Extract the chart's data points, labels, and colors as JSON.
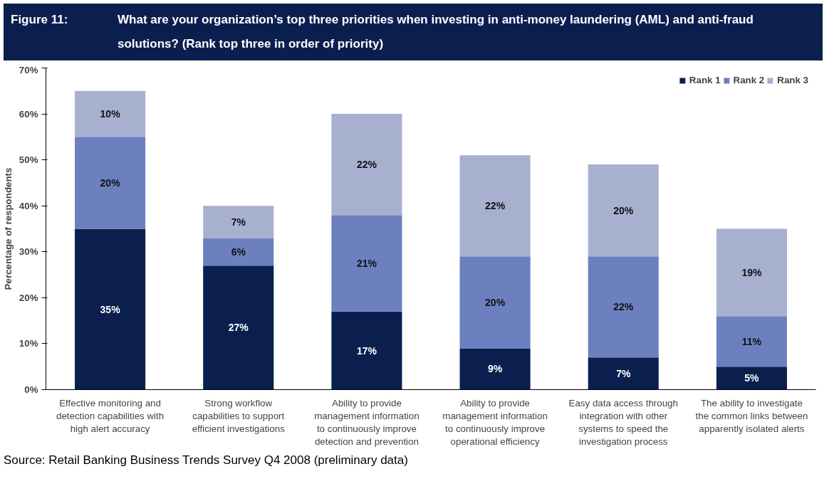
{
  "chart_data": {
    "type": "bar",
    "stacked": true,
    "title": "Figure 11:",
    "subtitle": "What are your organization’s top three priorities when investing in anti-money laundering (AML) and anti-fraud solutions? (Rank top three in order of priority)",
    "ylabel": "Percentage of respondents",
    "categories": [
      "Effective monitoring and\ndetection capabilities with\nhigh alert accuracy",
      "Strong workflow\ncapabilities to support\nefficient investigations",
      "Ability to provide\nmanagement information\nto continuously improve\ndetection and prevention",
      "Ability to provide\nmanagement information\nto continuously improve\noperational efficiency",
      "Easy data access through\nintegration with other\nsystems to speed the\ninvestigation process",
      "The ability to investigate\nthe common links between\napparently isolated alerts"
    ],
    "series": [
      {
        "name": "Rank 1",
        "color": "#0b1f4f",
        "values": [
          35,
          27,
          17,
          9,
          7,
          5
        ],
        "value_labels": [
          "35%",
          "27%",
          "17%",
          "9%",
          "7%",
          "5%"
        ]
      },
      {
        "name": "Rank 2",
        "color": "#6c80c0",
        "values": [
          20,
          6,
          21,
          20,
          22,
          11
        ],
        "value_labels": [
          "20%",
          "6%",
          "21%",
          "20%",
          "22%",
          "11%"
        ]
      },
      {
        "name": "Rank 3",
        "color": "#a8b0d0",
        "values": [
          10,
          7,
          22,
          22,
          20,
          19
        ],
        "value_labels": [
          "10%",
          "7%",
          "22%",
          "22%",
          "20%",
          "19%"
        ]
      }
    ],
    "ylim": [
      0,
      70
    ],
    "yticks": [
      {
        "value": 0,
        "label": "0%"
      },
      {
        "value": 10,
        "label": "10%"
      },
      {
        "value": 20,
        "label": "20%"
      },
      {
        "value": 30,
        "label": "30%"
      },
      {
        "value": 40,
        "label": "40%"
      },
      {
        "value": 50,
        "label": "50%"
      },
      {
        "value": 60,
        "label": "60%"
      },
      {
        "value": 70,
        "label": "70%"
      }
    ],
    "legend": "top right",
    "annotations": [
      "Source: Retail Banking Business Trends Survey Q4 2008 (preliminary data)"
    ]
  }
}
